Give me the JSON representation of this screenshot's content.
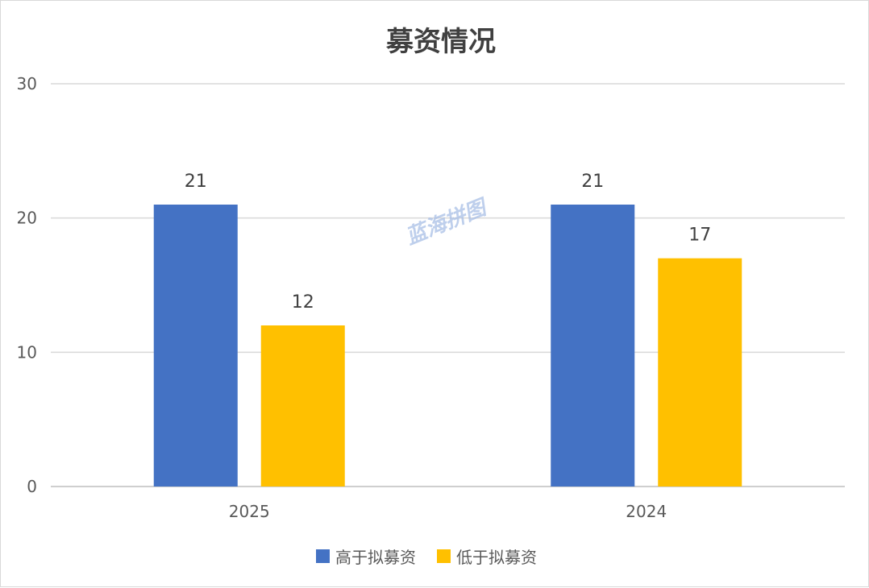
{
  "chart_data": {
    "type": "bar",
    "title": "募资情况",
    "categories": [
      "2025",
      "2024"
    ],
    "series": [
      {
        "name": "高于拟募资",
        "values": [
          21,
          21
        ],
        "color": "#4472c4"
      },
      {
        "name": "低于拟募资",
        "values": [
          12,
          17
        ],
        "color": "#ffc000"
      }
    ],
    "ylim": [
      0,
      30
    ],
    "yticks": [
      0,
      10,
      20,
      30
    ],
    "grid": true,
    "legend": "bottom",
    "data_labels": true
  },
  "watermark": "蓝海拼图"
}
